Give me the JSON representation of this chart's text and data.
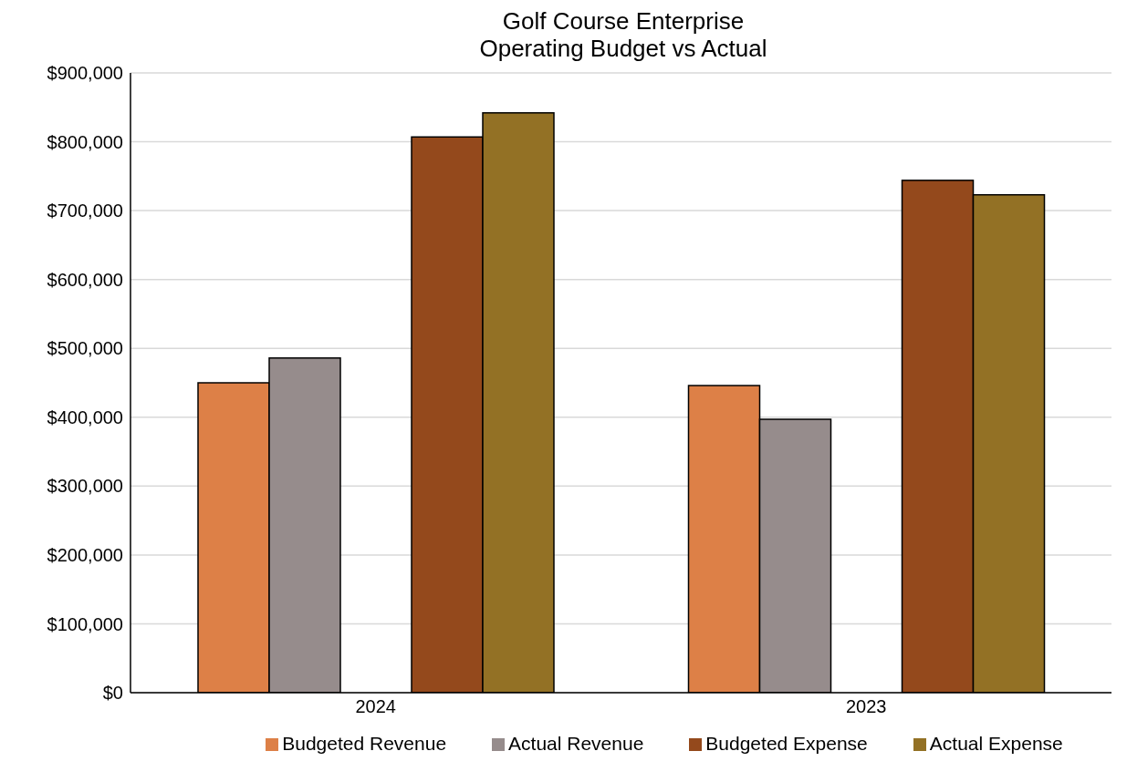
{
  "chart_data": {
    "type": "bar",
    "title": "Golf Course Enterprise\nOperating Budget vs Actual",
    "categories": [
      "2024",
      "2023"
    ],
    "series": [
      {
        "name": "Budgeted Revenue",
        "color": "#dd8047",
        "values": [
          450000,
          446000
        ]
      },
      {
        "name": "Actual Revenue",
        "color": "#968c8c",
        "values": [
          486000,
          397000
        ]
      },
      {
        "name": "Budgeted Expense",
        "color": "#94491c",
        "values": [
          807000,
          744000
        ]
      },
      {
        "name": "Actual Expense",
        "color": "#937125",
        "values": [
          842000,
          723000
        ]
      }
    ],
    "ylim": [
      0,
      900000
    ],
    "yticks": [
      {
        "value": 0,
        "label": "$0"
      },
      {
        "value": 100000,
        "label": "$100,000"
      },
      {
        "value": 200000,
        "label": "$200,000"
      },
      {
        "value": 300000,
        "label": "$300,000"
      },
      {
        "value": 400000,
        "label": "$400,000"
      },
      {
        "value": 500000,
        "label": "$500,000"
      },
      {
        "value": 600000,
        "label": "$600,000"
      },
      {
        "value": 700000,
        "label": "$700,000"
      },
      {
        "value": 800000,
        "label": "$800,000"
      },
      {
        "value": 900000,
        "label": "$900,000"
      }
    ],
    "grid": "y",
    "legend": "bottom"
  }
}
